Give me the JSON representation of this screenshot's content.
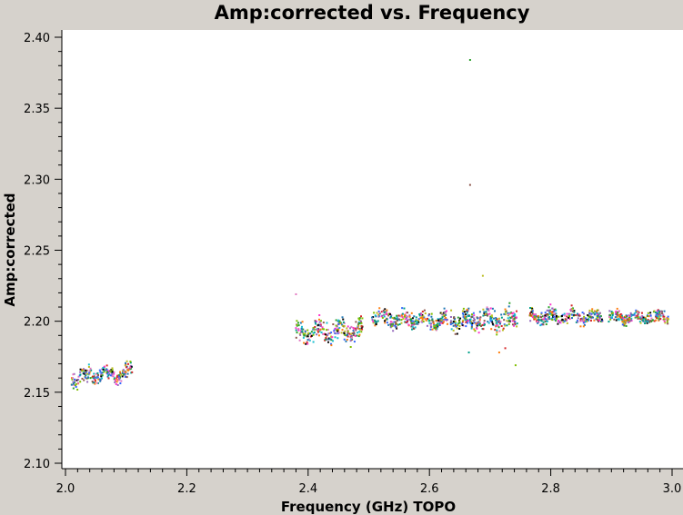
{
  "chart_data": {
    "type": "scatter",
    "title": "Amp:corrected vs. Frequency",
    "xlabel": "Frequency (GHz) TOPO",
    "ylabel": "Amp:corrected",
    "xlim": [
      2.0,
      3.0
    ],
    "ylim": [
      2.1,
      2.4
    ],
    "x_ticks": [
      "2.0",
      "2.2",
      "2.4",
      "2.6",
      "2.8",
      "3.0"
    ],
    "y_ticks": [
      "2.10",
      "2.15",
      "2.20",
      "2.25",
      "2.30",
      "2.35",
      "2.40"
    ],
    "grid": false,
    "legend": "none",
    "colors": [
      "#1f77b4",
      "#2ca02c",
      "#d62728",
      "#9467bd",
      "#8c564b",
      "#e377c2",
      "#17becf",
      "#bcbd22",
      "#ff7f0e",
      "#000000",
      "#7fbf00",
      "#ff33cc",
      "#3366ff",
      "#00a08a"
    ],
    "segments": [
      {
        "x": [
          2.01,
          2.11
        ],
        "y": 2.162,
        "spread": 0.008,
        "slope": 0.05
      },
      {
        "x": [
          2.38,
          2.49
        ],
        "y": 2.193,
        "spread": 0.01,
        "slope": 0.02
      },
      {
        "x": [
          2.505,
          2.63
        ],
        "y": 2.201,
        "spread": 0.008,
        "slope": -0.01
      },
      {
        "x": [
          2.635,
          2.745
        ],
        "y": 2.201,
        "spread": 0.01,
        "slope": 0.0
      },
      {
        "x": [
          2.765,
          2.885
        ],
        "y": 2.203,
        "spread": 0.007,
        "slope": 0.0
      },
      {
        "x": [
          2.895,
          2.995
        ],
        "y": 2.203,
        "spread": 0.006,
        "slope": 0.0
      }
    ],
    "outliers": [
      {
        "x": 2.667,
        "y": 2.384
      },
      {
        "x": 2.667,
        "y": 2.296
      },
      {
        "x": 2.688,
        "y": 2.232
      },
      {
        "x": 2.742,
        "y": 2.169
      },
      {
        "x": 2.665,
        "y": 2.178
      },
      {
        "x": 2.725,
        "y": 2.181
      },
      {
        "x": 2.38,
        "y": 2.219
      },
      {
        "x": 2.715,
        "y": 2.178
      }
    ]
  }
}
